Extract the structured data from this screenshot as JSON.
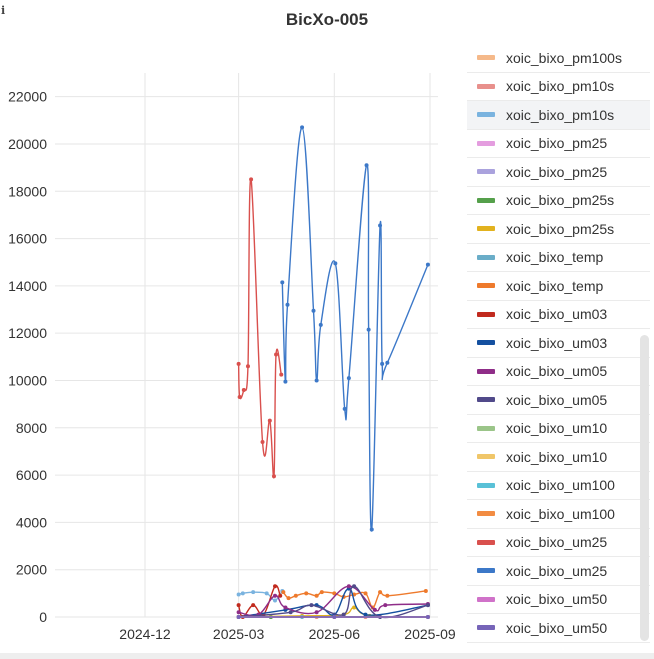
{
  "chart_data": {
    "type": "line",
    "title": "BicXo-005",
    "xlabel": "",
    "ylabel": "",
    "x_ticks": [
      "2024-12",
      "2025-03",
      "2025-06",
      "2025-09"
    ],
    "y_ticks": [
      "0",
      "2000",
      "4000",
      "6000",
      "8000",
      "10000",
      "12000",
      "14000",
      "16000",
      "18000",
      "20000",
      "22000"
    ],
    "ylim": [
      0,
      23000
    ],
    "grid": true,
    "legend_position": "right",
    "series": [
      {
        "name": "xoic_bixo_pm100s",
        "color": "#f5b98a",
        "points": [
          [
            "2025-03-01",
            0
          ],
          [
            "2025-04-01",
            0
          ],
          [
            "2025-05-15",
            0
          ],
          [
            "2025-07-01",
            0
          ],
          [
            "2025-08-30",
            0
          ]
        ]
      },
      {
        "name": "xoic_bixo_pm10s",
        "color": "#e8908c",
        "points": [
          [
            "2025-03-01",
            0
          ],
          [
            "2025-04-01",
            0
          ],
          [
            "2025-05-15",
            0
          ],
          [
            "2025-07-01",
            0
          ],
          [
            "2025-08-30",
            0
          ]
        ]
      },
      {
        "name": "xoic_bixo_pm10s",
        "color": "#7ab3df",
        "points": [
          [
            "2025-03-01",
            950
          ],
          [
            "2025-03-05",
            1000
          ],
          [
            "2025-03-15",
            1050
          ],
          [
            "2025-03-28",
            1000
          ],
          [
            "2025-04-05",
            700
          ],
          [
            "2025-04-12",
            1100
          ]
        ]
      },
      {
        "name": "xoic_bixo_pm25",
        "color": "#e49ddf",
        "points": [
          [
            "2025-03-01",
            0
          ],
          [
            "2025-04-01",
            0
          ],
          [
            "2025-06-01",
            0
          ],
          [
            "2025-08-30",
            0
          ]
        ]
      },
      {
        "name": "xoic_bixo_pm25",
        "color": "#aaa2dd",
        "points": [
          [
            "2025-03-01",
            0
          ],
          [
            "2025-04-01",
            0
          ],
          [
            "2025-06-01",
            0
          ],
          [
            "2025-08-30",
            0
          ]
        ]
      },
      {
        "name": "xoic_bixo_pm25s",
        "color": "#55a04b",
        "points": [
          [
            "2025-03-01",
            0
          ],
          [
            "2025-04-01",
            0
          ],
          [
            "2025-06-01",
            0
          ],
          [
            "2025-08-30",
            0
          ]
        ]
      },
      {
        "name": "xoic_bixo_pm25s",
        "color": "#e2b21e",
        "points": [
          [
            "2025-03-01",
            0
          ],
          [
            "2025-05-01",
            50
          ],
          [
            "2025-06-10",
            100
          ],
          [
            "2025-06-20",
            400
          ],
          [
            "2025-07-05",
            50
          ],
          [
            "2025-08-30",
            0
          ]
        ]
      },
      {
        "name": "xoic_bixo_temp",
        "color": "#6aadc8",
        "points": [
          [
            "2025-03-01",
            0
          ],
          [
            "2025-05-01",
            0
          ],
          [
            "2025-08-30",
            0
          ]
        ]
      },
      {
        "name": "xoic_bixo_temp",
        "color": "#ee7a2c",
        "points": [
          [
            "2025-04-13",
            1050
          ],
          [
            "2025-04-18",
            800
          ],
          [
            "2025-04-25",
            900
          ],
          [
            "2025-05-05",
            1000
          ],
          [
            "2025-05-15",
            900
          ],
          [
            "2025-05-20",
            1050
          ],
          [
            "2025-06-01",
            1000
          ],
          [
            "2025-06-10",
            850
          ],
          [
            "2025-06-20",
            950
          ],
          [
            "2025-07-01",
            1000
          ],
          [
            "2025-07-08",
            400
          ],
          [
            "2025-07-15",
            1050
          ],
          [
            "2025-07-22",
            900
          ],
          [
            "2025-08-28",
            1100
          ]
        ]
      },
      {
        "name": "xoic_bixo_um03",
        "color": "#c12a1e",
        "points": [
          [
            "2025-03-01",
            500
          ],
          [
            "2025-03-05",
            0
          ],
          [
            "2025-03-15",
            500
          ],
          [
            "2025-03-25",
            100
          ],
          [
            "2025-04-05",
            1300
          ],
          [
            "2025-04-10",
            900
          ]
        ]
      },
      {
        "name": "xoic_bixo_um03",
        "color": "#1450a0",
        "points": [
          [
            "2025-03-01",
            0
          ],
          [
            "2025-04-15",
            300
          ],
          [
            "2025-05-15",
            500
          ],
          [
            "2025-06-01",
            100
          ],
          [
            "2025-06-15",
            1200
          ],
          [
            "2025-07-01",
            100
          ],
          [
            "2025-08-30",
            500
          ]
        ]
      },
      {
        "name": "xoic_bixo_um05",
        "color": "#8f2d88",
        "points": [
          [
            "2025-03-01",
            200
          ],
          [
            "2025-03-20",
            100
          ],
          [
            "2025-04-05",
            900
          ],
          [
            "2025-04-15",
            400
          ],
          [
            "2025-05-15",
            200
          ],
          [
            "2025-06-15",
            1300
          ],
          [
            "2025-07-10",
            300
          ],
          [
            "2025-07-20",
            500
          ],
          [
            "2025-08-30",
            550
          ]
        ]
      },
      {
        "name": "xoic_bixo_um05",
        "color": "#514a8a",
        "points": [
          [
            "2025-03-01",
            0
          ],
          [
            "2025-04-20",
            200
          ],
          [
            "2025-05-10",
            500
          ],
          [
            "2025-06-10",
            100
          ],
          [
            "2025-06-20",
            1300
          ],
          [
            "2025-07-15",
            0
          ],
          [
            "2025-08-30",
            500
          ]
        ]
      },
      {
        "name": "xoic_bixo_um10",
        "color": "#9bc589",
        "points": [
          [
            "2025-03-01",
            0
          ],
          [
            "2025-06-01",
            0
          ],
          [
            "2025-08-30",
            0
          ]
        ]
      },
      {
        "name": "xoic_bixo_um10",
        "color": "#f0c669",
        "points": [
          [
            "2025-03-01",
            0
          ],
          [
            "2025-06-01",
            0
          ],
          [
            "2025-08-30",
            0
          ]
        ]
      },
      {
        "name": "xoic_bixo_um100",
        "color": "#59c1d7",
        "points": [
          [
            "2025-03-01",
            0
          ],
          [
            "2025-06-01",
            0
          ],
          [
            "2025-08-30",
            0
          ]
        ]
      },
      {
        "name": "xoic_bixo_um100",
        "color": "#f28c42",
        "points": [
          [
            "2025-03-01",
            0
          ],
          [
            "2025-06-01",
            0
          ],
          [
            "2025-08-30",
            0
          ]
        ]
      },
      {
        "name": "xoic_bixo_um25",
        "color": "#d9504d",
        "points": [
          [
            "2025-03-01",
            10700
          ],
          [
            "2025-03-02",
            9300
          ],
          [
            "2025-03-06",
            9600
          ],
          [
            "2025-03-10",
            10600
          ],
          [
            "2025-03-13",
            18500
          ],
          [
            "2025-03-24",
            7400
          ],
          [
            "2025-03-31",
            8300
          ],
          [
            "2025-04-04",
            5950
          ],
          [
            "2025-04-06",
            11100
          ],
          [
            "2025-04-11",
            10250
          ]
        ]
      },
      {
        "name": "xoic_bixo_um25",
        "color": "#3c78c8",
        "points": [
          [
            "2025-04-12",
            14150
          ],
          [
            "2025-04-15",
            9950
          ],
          [
            "2025-04-17",
            13200
          ],
          [
            "2025-05-01",
            20700
          ],
          [
            "2025-05-12",
            12950
          ],
          [
            "2025-05-15",
            10000
          ],
          [
            "2025-05-19",
            12350
          ],
          [
            "2025-06-02",
            14950
          ],
          [
            "2025-06-11",
            8800
          ],
          [
            "2025-06-15",
            10100
          ],
          [
            "2025-07-02",
            19100
          ],
          [
            "2025-07-04",
            12150
          ],
          [
            "2025-07-07",
            3700
          ],
          [
            "2025-07-15",
            16550
          ],
          [
            "2025-07-17",
            10700
          ],
          [
            "2025-07-22",
            10750
          ],
          [
            "2025-08-30",
            14900
          ]
        ]
      },
      {
        "name": "xoic_bixo_um50",
        "color": "#d072c9",
        "points": [
          [
            "2025-03-01",
            0
          ],
          [
            "2025-06-01",
            0
          ],
          [
            "2025-08-30",
            0
          ]
        ]
      },
      {
        "name": "xoic_bixo_um50",
        "color": "#7664b8",
        "points": [
          [
            "2025-03-01",
            0
          ],
          [
            "2025-06-01",
            0
          ],
          [
            "2025-08-30",
            0
          ]
        ]
      }
    ]
  },
  "icons": {
    "info": "info-icon"
  }
}
